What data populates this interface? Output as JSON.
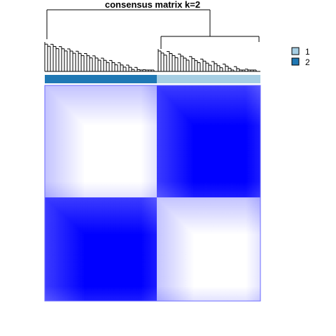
{
  "chart_data": {
    "type": "heatmap",
    "title": "consensus matrix k=2",
    "k": 2,
    "legend": {
      "placement": "top-right",
      "entries": [
        {
          "label": "1",
          "color": "#a6cee3"
        },
        {
          "label": "2",
          "color": "#1f78b4"
        }
      ]
    },
    "value_range": [
      0,
      1
    ],
    "color_scale": {
      "low": "#ffffff",
      "high": "#0000ff"
    },
    "clusters": [
      {
        "name": "2",
        "fraction": 0.52,
        "color": "#1f78b4"
      },
      {
        "name": "1",
        "fraction": 0.48,
        "color": "#a6cee3"
      }
    ],
    "block_consensus": [
      [
        0.0,
        1.0
      ],
      [
        1.0,
        0.0
      ]
    ]
  }
}
